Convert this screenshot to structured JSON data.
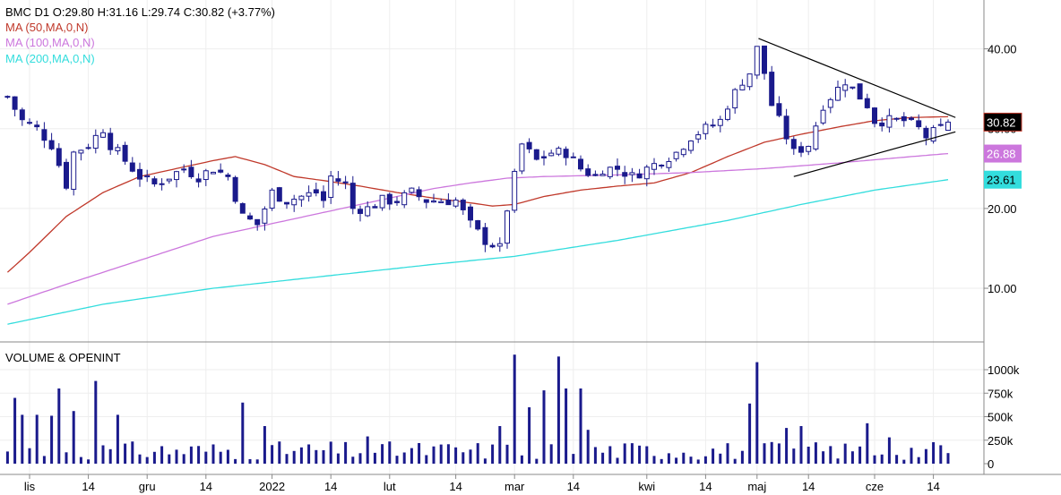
{
  "header": {
    "title": "BMC  D1  O:29.80  H:31.16  L:29.74  C:30.82  (+3.77%)",
    "ma50": "MA (50,MA,0,N)",
    "ma100": "MA (100,MA,0,N)",
    "ma200": "MA (200,MA,0,N)"
  },
  "volume_title": "VOLUME & OPENINT",
  "colors": {
    "candle": "#1a1a8c",
    "ma50": "#c0392b",
    "ma100": "#cc77dd",
    "ma200": "#33dddd",
    "trend": "#000000",
    "volume": "#1a1a8c"
  },
  "chart_data": [
    {
      "type": "candlestick",
      "price_axis": {
        "ticks": [
          "10.00",
          "20.00",
          "30.00",
          "40.00"
        ],
        "ylim": [
          3.5,
          45
        ]
      },
      "badges": [
        {
          "text": "30.82",
          "value": 30.82,
          "bg": "#000000",
          "fg": "#ffffff"
        },
        {
          "text": "26.88",
          "value": 26.88,
          "bg": "#cc77dd",
          "fg": "#ffffff"
        },
        {
          "text": "23.61",
          "value": 23.61,
          "bg": "#33dddd",
          "fg": "#000000"
        }
      ],
      "x_ticks": [
        {
          "label": "lis",
          "day": 0
        },
        {
          "label": "14",
          "day": 8
        },
        {
          "label": "gru",
          "day": 16
        },
        {
          "label": "14",
          "day": 24
        },
        {
          "label": "2022",
          "day": 33
        },
        {
          "label": "14",
          "day": 41
        },
        {
          "label": "lut",
          "day": 49
        },
        {
          "label": "14",
          "day": 58
        },
        {
          "label": "mar",
          "day": 66
        },
        {
          "label": "14",
          "day": 74
        },
        {
          "label": "kwi",
          "day": 84
        },
        {
          "label": "14",
          "day": 92
        },
        {
          "label": "maj",
          "day": 99
        },
        {
          "label": "14",
          "day": 106
        },
        {
          "label": "cze",
          "day": 115
        },
        {
          "label": "14",
          "day": 123
        }
      ],
      "close_anchors": [
        [
          -3,
          34
        ],
        [
          -1,
          31
        ],
        [
          1,
          30
        ],
        [
          3,
          28
        ],
        [
          5,
          23
        ],
        [
          6,
          27
        ],
        [
          8,
          28
        ],
        [
          10,
          30
        ],
        [
          11,
          28
        ],
        [
          13,
          26
        ],
        [
          15,
          24
        ],
        [
          17,
          23
        ],
        [
          19,
          24
        ],
        [
          21,
          25
        ],
        [
          23,
          24
        ],
        [
          25,
          25
        ],
        [
          27,
          24
        ],
        [
          29,
          19
        ],
        [
          31,
          18
        ],
        [
          33,
          22
        ],
        [
          35,
          21
        ],
        [
          37,
          21.5
        ],
        [
          39,
          22
        ],
        [
          40,
          21
        ],
        [
          41,
          24
        ],
        [
          43,
          23
        ],
        [
          44,
          20
        ],
        [
          46,
          20
        ],
        [
          48,
          21
        ],
        [
          50,
          21
        ],
        [
          52,
          22
        ],
        [
          54,
          21
        ],
        [
          56,
          21
        ],
        [
          58,
          21
        ],
        [
          60,
          18
        ],
        [
          62,
          16
        ],
        [
          64,
          15
        ],
        [
          65,
          20
        ],
        [
          66,
          24
        ],
        [
          67,
          28
        ],
        [
          69,
          26
        ],
        [
          71,
          27
        ],
        [
          73,
          27
        ],
        [
          75,
          25
        ],
        [
          77,
          24
        ],
        [
          78,
          25
        ],
        [
          80,
          25
        ],
        [
          82,
          24
        ],
        [
          84,
          25
        ],
        [
          86,
          26
        ],
        [
          88,
          27
        ],
        [
          90,
          29
        ],
        [
          92,
          30
        ],
        [
          94,
          31
        ],
        [
          95,
          33
        ],
        [
          97,
          36
        ],
        [
          98,
          37
        ],
        [
          99,
          40
        ],
        [
          100,
          37
        ],
        [
          101,
          33
        ],
        [
          103,
          29
        ],
        [
          104,
          27
        ],
        [
          106,
          28
        ],
        [
          108,
          33
        ],
        [
          110,
          35
        ],
        [
          111,
          36
        ],
        [
          113,
          34
        ],
        [
          114,
          33
        ],
        [
          115,
          31
        ],
        [
          117,
          31
        ],
        [
          119,
          31
        ],
        [
          121,
          30
        ],
        [
          122,
          29
        ],
        [
          124,
          30
        ],
        [
          125,
          30.82
        ]
      ],
      "ohlc_last": {
        "open": 29.8,
        "high": 31.16,
        "low": 29.74,
        "close": 30.82
      },
      "ma_series": [
        {
          "name": "MA (50,MA,0,N)",
          "anchors": [
            [
              -3,
              12
            ],
            [
              0,
              14.5
            ],
            [
              5,
              19
            ],
            [
              10,
              22
            ],
            [
              15,
              24
            ],
            [
              20,
              25
            ],
            [
              25,
              26
            ],
            [
              28,
              26.5
            ],
            [
              32,
              25.5
            ],
            [
              36,
              24
            ],
            [
              40,
              23.5
            ],
            [
              45,
              22.8
            ],
            [
              50,
              22
            ],
            [
              55,
              21.3
            ],
            [
              60,
              20.7
            ],
            [
              63,
              20.3
            ],
            [
              66,
              20.5
            ],
            [
              70,
              21.5
            ],
            [
              75,
              22.3
            ],
            [
              80,
              22.8
            ],
            [
              85,
              23.2
            ],
            [
              90,
              24.5
            ],
            [
              95,
              26.5
            ],
            [
              100,
              28.3
            ],
            [
              105,
              29.3
            ],
            [
              110,
              30.2
            ],
            [
              115,
              31
            ],
            [
              120,
              31.4
            ],
            [
              125,
              31.5
            ]
          ]
        },
        {
          "name": "MA (100,MA,0,N)",
          "anchors": [
            [
              -3,
              8
            ],
            [
              5,
              10.5
            ],
            [
              15,
              13.5
            ],
            [
              25,
              16.5
            ],
            [
              35,
              18.5
            ],
            [
              45,
              20.5
            ],
            [
              55,
              22.5
            ],
            [
              60,
              23.2
            ],
            [
              65,
              23.8
            ],
            [
              70,
              24
            ],
            [
              80,
              24.2
            ],
            [
              90,
              24.5
            ],
            [
              100,
              25
            ],
            [
              110,
              25.7
            ],
            [
              120,
              26.5
            ],
            [
              125,
              26.88
            ]
          ]
        },
        {
          "name": "MA (200,MA,0,N)",
          "anchors": [
            [
              -3,
              5.5
            ],
            [
              10,
              8
            ],
            [
              25,
              10
            ],
            [
              40,
              11.5
            ],
            [
              55,
              13
            ],
            [
              66,
              14
            ],
            [
              80,
              16
            ],
            [
              95,
              18.5
            ],
            [
              105,
              20.5
            ],
            [
              115,
              22.3
            ],
            [
              125,
              23.61
            ]
          ]
        }
      ],
      "trendlines": [
        {
          "from": [
            99.2,
            41.3
          ],
          "to": [
            126,
            31.4
          ]
        },
        {
          "from": [
            104,
            24
          ],
          "to": [
            126,
            29.6
          ]
        }
      ]
    },
    {
      "type": "bar",
      "title": "VOLUME & OPENINT",
      "axis_ticks": [
        "0",
        "250k",
        "500k",
        "750k",
        "1000k"
      ],
      "ylim": [
        0,
        1200
      ],
      "unit": "k",
      "spikes": [
        [
          -2,
          700
        ],
        [
          -1,
          520
        ],
        [
          1,
          520
        ],
        [
          3,
          510
        ],
        [
          4,
          800
        ],
        [
          6,
          560
        ],
        [
          9,
          880
        ],
        [
          12,
          520
        ],
        [
          29,
          650
        ],
        [
          32,
          400
        ],
        [
          46,
          290
        ],
        [
          64,
          400
        ],
        [
          66,
          1160
        ],
        [
          68,
          600
        ],
        [
          70,
          780
        ],
        [
          72,
          1140
        ],
        [
          73,
          800
        ],
        [
          75,
          800
        ],
        [
          76,
          360
        ],
        [
          98,
          640
        ],
        [
          99,
          1080
        ],
        [
          103,
          380
        ],
        [
          105,
          400
        ],
        [
          114,
          430
        ],
        [
          117,
          280
        ]
      ]
    }
  ]
}
